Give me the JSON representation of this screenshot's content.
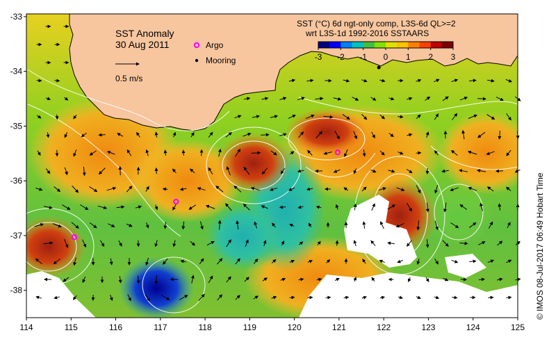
{
  "map": {
    "title": "SST Anomaly",
    "date": "30 Aug 2011",
    "scale_label": "0.5 m/s",
    "legend": {
      "argo_label": "Argo",
      "mooring_label": "Mooring",
      "argo_color": "#ff00ff",
      "mooring_color": "#000000"
    },
    "colorbar": {
      "title_line1": "SST (°C) 6d ngt-only comp, L3S-6d QL>=2",
      "title_line2": "wrt L3S-1d 1992-2016 SSTAARS",
      "ticks": [
        "-3",
        "-2",
        "-1",
        "0",
        "1",
        "2",
        "3"
      ],
      "colors": [
        "#000080",
        "#0000ff",
        "#0080ff",
        "#00c0c0",
        "#40c040",
        "#80e000",
        "#e0e000",
        "#ffc000",
        "#ff8000",
        "#ff4000",
        "#c00000",
        "#800000"
      ]
    },
    "x_ticks": [
      "114",
      "115",
      "116",
      "117",
      "118",
      "119",
      "120",
      "121",
      "122",
      "123",
      "124",
      "125"
    ],
    "y_ticks": [
      "-33",
      "-34",
      "-35",
      "-36",
      "-37",
      "-38"
    ],
    "credit": "©  IMOS 08-Jul-2017 06:49 Hobart Time",
    "land_color": "#f7c69f",
    "argo_floats": [
      {
        "lon": 115.07,
        "lat": -37.03
      },
      {
        "lon": 117.35,
        "lat": -36.38
      },
      {
        "lon": 120.97,
        "lat": -35.48
      }
    ],
    "mooring": {
      "lon": 121.89,
      "lat": -33.93
    }
  }
}
